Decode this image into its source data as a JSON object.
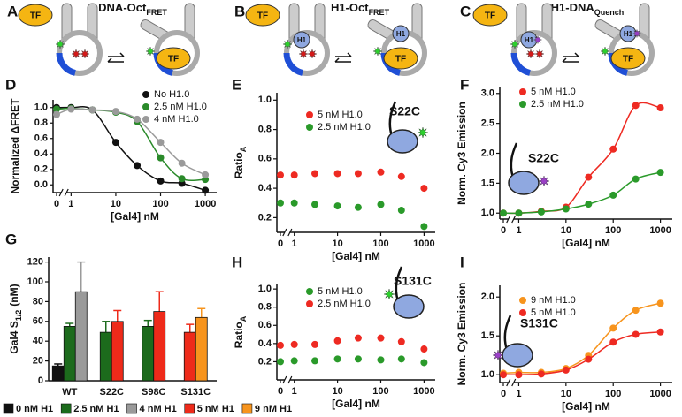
{
  "panel_labels": [
    "A",
    "B",
    "C",
    "D",
    "E",
    "F",
    "G",
    "H",
    "I"
  ],
  "diagrams": [
    {
      "title": "DNA-Oct",
      "title_sub": "FRET",
      "tf": "TF"
    },
    {
      "title": "H1-Oct",
      "title_sub": "FRET",
      "tf": "TF",
      "h1": "H1"
    },
    {
      "title": "H1-DNA",
      "title_sub": "Quench",
      "tf": "TF",
      "h1": "H1"
    }
  ],
  "chart_data": [
    {
      "type": "line",
      "y_label": "Normalized ΔFRET",
      "x_label": "[Gal4] nM",
      "xlog": true,
      "x": [
        0,
        1,
        3,
        10,
        30,
        100,
        300,
        1000
      ],
      "xlim": [
        0,
        1500
      ],
      "xticks": [
        0,
        1,
        10,
        100,
        1000
      ],
      "ylim": [
        -0.1,
        1.1
      ],
      "yticks": [
        {
          "value": 0,
          "label": "0.0"
        },
        0.2,
        0.4,
        0.6,
        0.8,
        {
          "value": 1,
          "label": "1.0"
        }
      ],
      "legend": "upper right",
      "series": [
        {
          "name": "No H1.0",
          "color": "#111111",
          "values": [
            1.0,
            1.0,
            0.97,
            0.55,
            0.25,
            0.05,
            0.02,
            -0.07
          ]
        },
        {
          "name": "2.5 nM H1.0",
          "color": "#2a8a2a",
          "values": [
            0.98,
            0.99,
            0.97,
            0.94,
            0.82,
            0.35,
            0.08,
            0.07
          ]
        },
        {
          "name": "4 nM H1.0",
          "color": "#9a9a9a",
          "values": [
            0.91,
            0.98,
            0.97,
            0.95,
            0.85,
            0.55,
            0.28,
            0.13
          ]
        }
      ]
    },
    {
      "type": "scatter",
      "y_label": "Ratio",
      "y_label_sub": "A",
      "x_label": "[Gal4] nM",
      "xlog": true,
      "x": [
        0,
        1,
        3,
        10,
        30,
        100,
        300,
        1000
      ],
      "xlim": [
        0,
        1500
      ],
      "xticks": [
        0,
        1,
        10,
        100,
        1000
      ],
      "ylim": [
        0.1,
        1.05
      ],
      "yticks": [
        0.2,
        0.4,
        0.6,
        0.8,
        {
          "value": 1,
          "label": "1.0"
        }
      ],
      "legend": "upper left",
      "inset_label": "S22C",
      "series": [
        {
          "name": "5 nM H1.0",
          "color": "#ee2a22",
          "values": [
            0.49,
            0.49,
            0.5,
            0.5,
            0.5,
            0.51,
            0.48,
            0.4
          ]
        },
        {
          "name": "2.5 nM H1.0",
          "color": "#2a9a2a",
          "values": [
            0.3,
            0.3,
            0.29,
            0.28,
            0.27,
            0.29,
            0.25,
            0.14
          ]
        }
      ]
    },
    {
      "type": "line",
      "y_label": "Norm. Cy3 Emission",
      "x_label": "[Gal4] nM",
      "xlog": true,
      "x": [
        0,
        1,
        3,
        10,
        30,
        100,
        300,
        1000
      ],
      "xlim": [
        0,
        1500
      ],
      "xticks": [
        0,
        1,
        10,
        100,
        1000
      ],
      "ylim": [
        0.9,
        3.1
      ],
      "yticks": [
        {
          "value": 1,
          "label": "1.0"
        },
        1.5,
        {
          "value": 2,
          "label": "2.0"
        },
        2.5,
        {
          "value": 3,
          "label": "3.0"
        }
      ],
      "legend": "upper left",
      "inset_label": "S22C",
      "series": [
        {
          "name": "5 nM H1.0",
          "color": "#ee2a22",
          "values": [
            1.0,
            1.0,
            1.03,
            1.1,
            1.6,
            2.07,
            2.8,
            2.76
          ]
        },
        {
          "name": "2.5 nM H1.0",
          "color": "#2a9a2a",
          "values": [
            1.0,
            1.0,
            1.02,
            1.07,
            1.15,
            1.3,
            1.57,
            1.68
          ]
        }
      ]
    },
    {
      "type": "bar",
      "y_label": "Gal4 S",
      "y_label_sub": "1/2",
      "y_label_end": "(nM)",
      "categories": [
        "WT",
        "S22C",
        "S98C",
        "S131C"
      ],
      "ylim": [
        0,
        125
      ],
      "yticks": [
        0,
        20,
        40,
        60,
        80,
        100,
        120
      ],
      "legend": "bottom",
      "series": [
        {
          "name": "0 nM H1",
          "color": "#111111",
          "values": [
            15,
            null,
            null,
            null
          ],
          "errors": [
            2,
            null,
            null,
            null
          ]
        },
        {
          "name": "2.5 nM H1",
          "color": "#1c6b1c",
          "values": [
            55,
            49,
            55,
            null
          ],
          "errors": [
            3,
            11,
            6,
            null
          ]
        },
        {
          "name": "4 nM H1",
          "color": "#9a9a9a",
          "values": [
            90,
            null,
            null,
            null
          ],
          "errors": [
            30,
            null,
            null,
            null
          ]
        },
        {
          "name": "5 nM H1",
          "color": "#ee2a1a",
          "values": [
            null,
            60,
            70,
            49
          ],
          "errors": [
            null,
            11,
            20,
            8
          ]
        },
        {
          "name": "9 nM H1",
          "color": "#f7941d",
          "values": [
            null,
            null,
            null,
            64
          ],
          "errors": [
            null,
            null,
            null,
            9
          ]
        }
      ]
    },
    {
      "type": "scatter",
      "y_label": "Ratio",
      "y_label_sub": "A",
      "x_label": "[Gal4] nM",
      "xlog": true,
      "x": [
        0,
        1,
        3,
        10,
        30,
        100,
        300,
        1000
      ],
      "xlim": [
        0,
        1500
      ],
      "xticks": [
        0,
        1,
        10,
        100,
        1000
      ],
      "ylim": [
        0,
        1.05
      ],
      "yticks": [
        0.2,
        0.4,
        0.6,
        0.8,
        {
          "value": 1,
          "label": "1.0"
        }
      ],
      "legend": "upper left",
      "inset_label": "S131C",
      "series": [
        {
          "name": "5 nM H1.0",
          "color": "#2a9a2a",
          "values": [
            0.2,
            0.21,
            0.21,
            0.23,
            0.23,
            0.22,
            0.23,
            0.19
          ]
        },
        {
          "name": "2.5 nM H1.0",
          "color": "#ee2a22",
          "values": [
            0.38,
            0.39,
            0.39,
            0.43,
            0.46,
            0.46,
            0.42,
            0.34
          ]
        }
      ]
    },
    {
      "type": "line",
      "y_label": "Norm. Cy3 Emission",
      "x_label": "[Gal4] nM",
      "xlog": true,
      "x": [
        0,
        1,
        3,
        10,
        30,
        100,
        300,
        1000
      ],
      "xlim": [
        0,
        1500
      ],
      "xticks": [
        0,
        1,
        10,
        100,
        1000
      ],
      "ylim": [
        0.9,
        2.15
      ],
      "yticks": [
        {
          "value": 1,
          "label": "1.0"
        },
        1.5,
        {
          "value": 2,
          "label": "2.0"
        }
      ],
      "legend": "upper left",
      "inset_label": "S131C",
      "series": [
        {
          "name": "9 nM H1.0",
          "color": "#f7941d",
          "values": [
            1.02,
            1.03,
            1.03,
            1.08,
            1.25,
            1.6,
            1.83,
            1.92
          ]
        },
        {
          "name": "5 nM H1.0",
          "color": "#ee2a22",
          "values": [
            1.0,
            1.0,
            1.01,
            1.06,
            1.2,
            1.42,
            1.52,
            1.55
          ]
        }
      ]
    }
  ]
}
